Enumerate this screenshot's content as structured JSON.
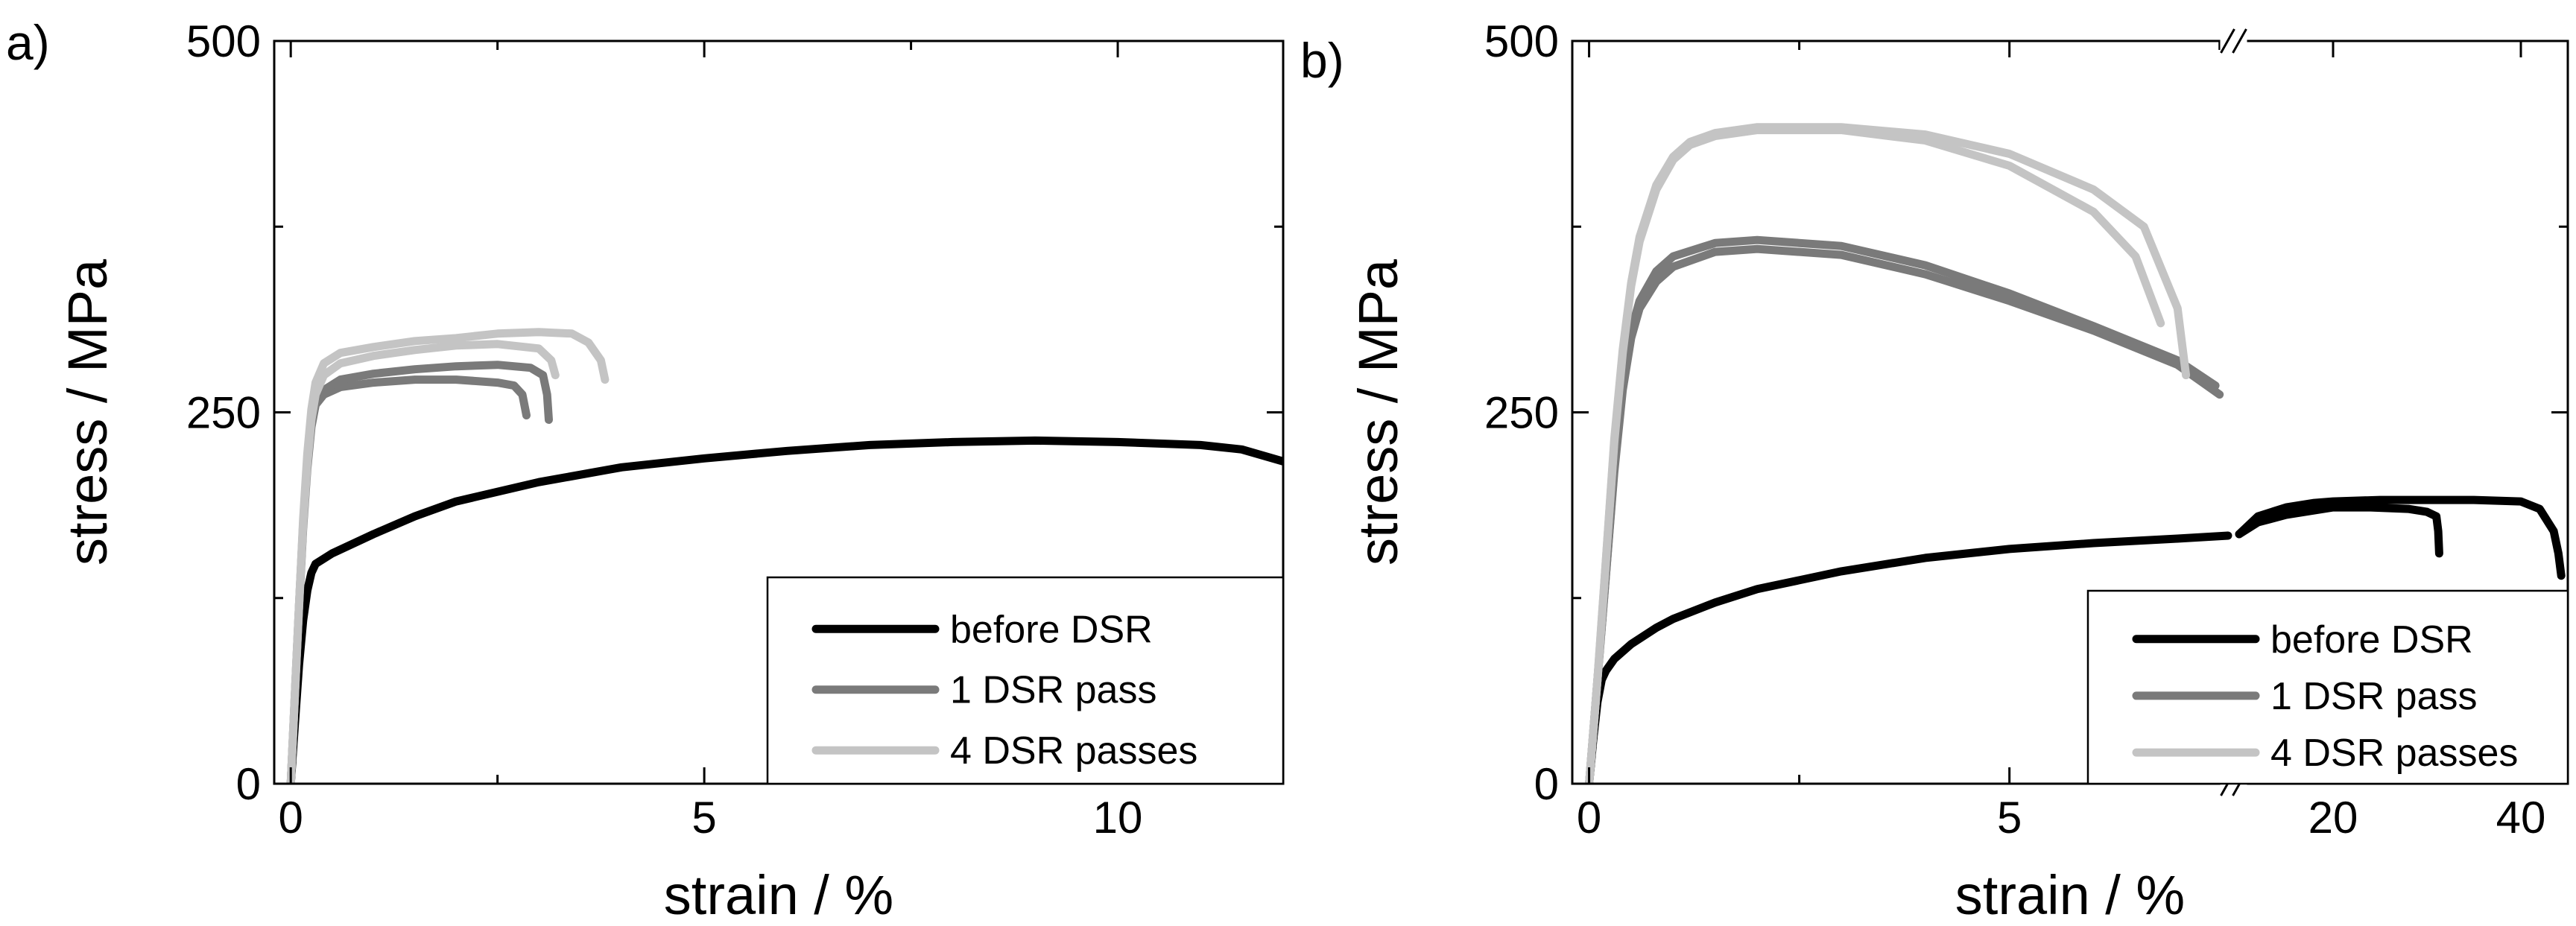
{
  "chart_data": [
    {
      "type": "line",
      "panel_label": "a)",
      "xlabel": "strain / %",
      "ylabel": "stress / MPa",
      "xlim": [
        -0.2,
        12
      ],
      "ylim": [
        0,
        500
      ],
      "xticks": [
        0,
        5,
        10
      ],
      "xtick_labels": [
        "0",
        "5",
        "10"
      ],
      "yticks": [
        0,
        250,
        500
      ],
      "ytick_labels": [
        "0",
        "250",
        "500"
      ],
      "legend": {
        "position": "bottom-right",
        "entries": [
          "before DSR",
          "1 DSR pass",
          "4 DSR passes"
        ]
      },
      "series": [
        {
          "name": "before DSR",
          "color": "#000000",
          "curves": [
            {
              "x": [
                0,
                0.05,
                0.1,
                0.15,
                0.2,
                0.25,
                0.3,
                0.5,
                1,
                1.5,
                2,
                3,
                4,
                5,
                6,
                7,
                8,
                9,
                10,
                11,
                11.5,
                12
              ],
              "y": [
                0,
                40,
                80,
                110,
                130,
                142,
                148,
                155,
                168,
                180,
                190,
                203,
                213,
                219,
                224,
                228,
                230,
                231,
                230,
                228,
                225,
                217
              ]
            }
          ]
        },
        {
          "name": "1 DSR pass",
          "color": "#7a7a7a",
          "curves": [
            {
              "x": [
                0,
                0.05,
                0.1,
                0.15,
                0.2,
                0.25,
                0.3,
                0.4,
                0.6,
                1,
                1.5,
                2,
                2.5,
                2.7,
                2.8,
                2.85
              ],
              "y": [
                0,
                60,
                120,
                175,
                215,
                242,
                255,
                262,
                267,
                270,
                272,
                272,
                270,
                268,
                262,
                248
              ]
            },
            {
              "x": [
                0,
                0.05,
                0.1,
                0.15,
                0.2,
                0.25,
                0.3,
                0.4,
                0.6,
                1,
                1.5,
                2,
                2.5,
                2.9,
                3.05,
                3.1,
                3.12
              ],
              "y": [
                0,
                58,
                118,
                172,
                212,
                240,
                255,
                265,
                272,
                276,
                279,
                281,
                282,
                280,
                275,
                262,
                245
              ]
            }
          ]
        },
        {
          "name": "4 DSR passes",
          "color": "#c4c4c4",
          "curves": [
            {
              "x": [
                0,
                0.05,
                0.1,
                0.15,
                0.2,
                0.25,
                0.3,
                0.4,
                0.6,
                1,
                1.5,
                2,
                2.5,
                3,
                3.15,
                3.2
              ],
              "y": [
                0,
                60,
                120,
                175,
                215,
                245,
                262,
                275,
                283,
                288,
                292,
                295,
                296,
                293,
                285,
                275
              ]
            },
            {
              "x": [
                0,
                0.05,
                0.1,
                0.15,
                0.2,
                0.25,
                0.3,
                0.4,
                0.6,
                1,
                1.5,
                2,
                2.5,
                3,
                3.4,
                3.6,
                3.75,
                3.8
              ],
              "y": [
                0,
                60,
                120,
                178,
                222,
                252,
                270,
                283,
                290,
                294,
                298,
                300,
                303,
                304,
                303,
                297,
                285,
                272
              ]
            }
          ]
        }
      ]
    },
    {
      "type": "line",
      "panel_label": "b)",
      "xlabel": "strain / %",
      "ylabel": "stress / MPa",
      "xlim": [
        -0.2,
        7.6
      ],
      "xlim_after_break": [
        10,
        45
      ],
      "axis_break_marks": true,
      "ylim": [
        0,
        500
      ],
      "xticks": [
        0,
        5
      ],
      "xtick_labels": [
        "0",
        "5"
      ],
      "xticks_after_break": [
        20,
        40
      ],
      "xtick_labels_after_break": [
        "20",
        "40"
      ],
      "yticks": [
        0,
        250,
        500
      ],
      "ytick_labels": [
        "0",
        "250",
        "500"
      ],
      "legend": {
        "position": "bottom-right",
        "entries": [
          "before DSR",
          "1 DSR pass",
          "4 DSR passes"
        ]
      },
      "series": [
        {
          "name": "before DSR",
          "color": "#000000",
          "curves": [
            {
              "x": [
                0,
                0.05,
                0.1,
                0.15,
                0.2,
                0.3,
                0.5,
                0.8,
                1,
                1.5,
                2,
                3,
                4,
                5,
                6,
                7,
                7.6
              ],
              "y": [
                0,
                30,
                55,
                70,
                76,
                84,
                94,
                105,
                111,
                122,
                131,
                143,
                152,
                158,
                162,
                165,
                167
              ]
            },
            {
              "x": [
                10,
                12,
                15,
                18,
                20,
                24,
                28,
                30,
                31,
                31.2,
                31.3
              ],
              "y": [
                168,
                176,
                181,
                184,
                186,
                186,
                185,
                183,
                180,
                170,
                155
              ]
            },
            {
              "x": [
                10,
                12,
                15,
                18,
                20,
                25,
                30,
                35,
                40,
                42,
                43.5,
                44,
                44.3
              ],
              "y": [
                168,
                180,
                186,
                189,
                190,
                191,
                191,
                191,
                190,
                185,
                170,
                155,
                140
              ]
            }
          ]
        },
        {
          "name": "1 DSR pass",
          "color": "#7a7a7a",
          "curves": [
            {
              "x": [
                0,
                0.1,
                0.2,
                0.3,
                0.4,
                0.5,
                0.6,
                0.8,
                1,
                1.5,
                2,
                3,
                4,
                5,
                6,
                7,
                7.5
              ],
              "y": [
                0,
                70,
                140,
                210,
                265,
                300,
                320,
                338,
                348,
                358,
                360,
                356,
                343,
                325,
                305,
                282,
                262
              ]
            },
            {
              "x": [
                0,
                0.1,
                0.2,
                0.3,
                0.4,
                0.5,
                0.6,
                0.8,
                1,
                1.5,
                2,
                3,
                4,
                5,
                6,
                7,
                7.45
              ],
              "y": [
                0,
                70,
                140,
                212,
                268,
                305,
                325,
                345,
                355,
                364,
                366,
                362,
                349,
                330,
                308,
                285,
                268
              ]
            }
          ]
        },
        {
          "name": "4 DSR passes",
          "color": "#c4c4c4",
          "curves": [
            {
              "x": [
                0,
                0.1,
                0.2,
                0.3,
                0.4,
                0.5,
                0.6,
                0.8,
                1,
                1.2,
                1.5,
                2,
                3,
                4,
                5,
                6,
                6.5,
                6.8
              ],
              "y": [
                0,
                70,
                150,
                230,
                290,
                335,
                365,
                400,
                420,
                430,
                436,
                440,
                440,
                433,
                416,
                385,
                355,
                310
              ]
            },
            {
              "x": [
                0,
                0.1,
                0.2,
                0.3,
                0.4,
                0.5,
                0.6,
                0.8,
                1,
                1.2,
                1.5,
                2,
                3,
                4,
                5,
                6,
                6.6,
                7,
                7.1
              ],
              "y": [
                0,
                70,
                150,
                232,
                292,
                337,
                368,
                403,
                422,
                432,
                438,
                442,
                442,
                437,
                424,
                400,
                375,
                320,
                275
              ]
            }
          ]
        }
      ]
    }
  ]
}
